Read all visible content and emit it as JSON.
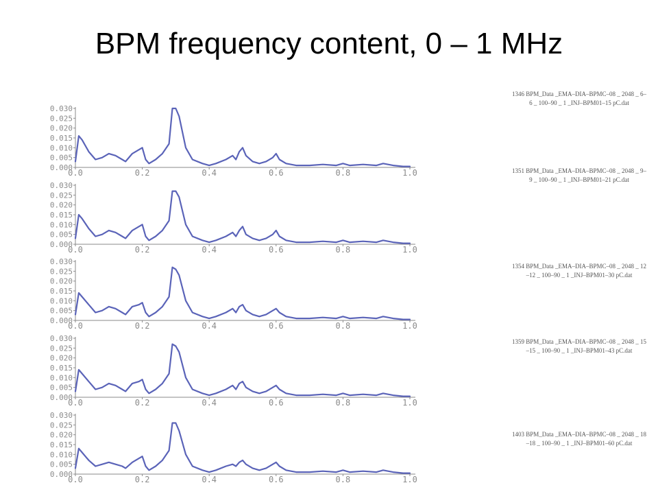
{
  "slide": {
    "title": "BPM frequency content, 0 – 1 MHz"
  },
  "colors": {
    "series": "#5a63b8",
    "axis": "#8a8a8a",
    "caption": "#555555"
  },
  "chart_data": [
    {
      "type": "line",
      "caption": "1346 BPM_Data _EMA–DIA–BPMC–08 _ 2048 _ 6–6 _ 100–90 _ 1 _INJ–BPM01–15 pC.dat",
      "xlim": [
        0,
        1.0
      ],
      "ylim": [
        0,
        0.03
      ],
      "x_ticks": [
        "0.0",
        "0.2",
        "0.4",
        "0.6",
        "0.8",
        "1.0"
      ],
      "y_ticks": [
        "0.000",
        "0.005",
        "0.010",
        "0.015",
        "0.020",
        "0.025",
        "0.030"
      ],
      "x": [
        0.0,
        0.01,
        0.02,
        0.04,
        0.06,
        0.08,
        0.1,
        0.12,
        0.14,
        0.15,
        0.17,
        0.19,
        0.2,
        0.21,
        0.22,
        0.24,
        0.26,
        0.28,
        0.29,
        0.3,
        0.31,
        0.33,
        0.35,
        0.38,
        0.4,
        0.42,
        0.45,
        0.47,
        0.48,
        0.49,
        0.5,
        0.51,
        0.53,
        0.55,
        0.57,
        0.59,
        0.6,
        0.61,
        0.63,
        0.66,
        0.7,
        0.74,
        0.78,
        0.8,
        0.82,
        0.86,
        0.9,
        0.92,
        0.95,
        0.98,
        1.0
      ],
      "values": [
        0.003,
        0.016,
        0.014,
        0.008,
        0.004,
        0.005,
        0.007,
        0.006,
        0.004,
        0.003,
        0.007,
        0.009,
        0.01,
        0.004,
        0.002,
        0.004,
        0.007,
        0.012,
        0.03,
        0.03,
        0.026,
        0.01,
        0.004,
        0.002,
        0.001,
        0.002,
        0.004,
        0.006,
        0.004,
        0.008,
        0.01,
        0.006,
        0.003,
        0.002,
        0.003,
        0.005,
        0.007,
        0.004,
        0.002,
        0.001,
        0.001,
        0.0015,
        0.001,
        0.002,
        0.001,
        0.0015,
        0.001,
        0.002,
        0.001,
        0.0005,
        0.0005
      ]
    },
    {
      "type": "line",
      "caption": "1351 BPM_Data _EMA–DIA–BPMC–08 _ 2048 _ 9–9 _ 100–90 _ 1 _INJ–BPM01–21 pC.dat",
      "xlim": [
        0,
        1.0
      ],
      "ylim": [
        0,
        0.03
      ],
      "x_ticks": [
        "0.0",
        "0.2",
        "0.4",
        "0.6",
        "0.8",
        "1.0"
      ],
      "y_ticks": [
        "0.000",
        "0.005",
        "0.010",
        "0.015",
        "0.020",
        "0.025",
        "0.030"
      ],
      "x": [
        0.0,
        0.01,
        0.02,
        0.04,
        0.06,
        0.08,
        0.1,
        0.12,
        0.14,
        0.15,
        0.17,
        0.19,
        0.2,
        0.21,
        0.22,
        0.24,
        0.26,
        0.28,
        0.29,
        0.3,
        0.31,
        0.33,
        0.35,
        0.38,
        0.4,
        0.42,
        0.45,
        0.47,
        0.48,
        0.49,
        0.5,
        0.51,
        0.53,
        0.55,
        0.57,
        0.59,
        0.6,
        0.61,
        0.63,
        0.66,
        0.7,
        0.74,
        0.78,
        0.8,
        0.82,
        0.86,
        0.9,
        0.92,
        0.95,
        0.98,
        1.0
      ],
      "values": [
        0.003,
        0.015,
        0.013,
        0.008,
        0.004,
        0.005,
        0.007,
        0.006,
        0.004,
        0.003,
        0.007,
        0.009,
        0.01,
        0.004,
        0.002,
        0.004,
        0.007,
        0.012,
        0.027,
        0.027,
        0.024,
        0.01,
        0.004,
        0.002,
        0.001,
        0.002,
        0.004,
        0.006,
        0.004,
        0.007,
        0.009,
        0.005,
        0.003,
        0.002,
        0.003,
        0.005,
        0.007,
        0.004,
        0.002,
        0.001,
        0.001,
        0.0015,
        0.001,
        0.002,
        0.001,
        0.0015,
        0.001,
        0.002,
        0.001,
        0.0005,
        0.0005
      ]
    },
    {
      "type": "line",
      "caption": "1354 BPM_Data _EMA–DIA–BPMC–08 _ 2048 _ 12–12 _ 100–90 _ 1 _INJ–BPM01–30 pC.dat",
      "xlim": [
        0,
        1.0
      ],
      "ylim": [
        0,
        0.03
      ],
      "x_ticks": [
        "0.0",
        "0.2",
        "0.4",
        "0.6",
        "0.8",
        "1.0"
      ],
      "y_ticks": [
        "0.000",
        "0.005",
        "0.010",
        "0.015",
        "0.020",
        "0.025",
        "0.030"
      ],
      "x": [
        0.0,
        0.01,
        0.02,
        0.04,
        0.06,
        0.08,
        0.1,
        0.12,
        0.14,
        0.15,
        0.17,
        0.19,
        0.2,
        0.21,
        0.22,
        0.24,
        0.26,
        0.28,
        0.29,
        0.3,
        0.31,
        0.33,
        0.35,
        0.38,
        0.4,
        0.42,
        0.45,
        0.47,
        0.48,
        0.49,
        0.5,
        0.51,
        0.53,
        0.55,
        0.57,
        0.59,
        0.6,
        0.61,
        0.63,
        0.66,
        0.7,
        0.74,
        0.78,
        0.8,
        0.82,
        0.86,
        0.9,
        0.92,
        0.95,
        0.98,
        1.0
      ],
      "values": [
        0.003,
        0.014,
        0.012,
        0.008,
        0.004,
        0.005,
        0.007,
        0.006,
        0.004,
        0.003,
        0.007,
        0.008,
        0.009,
        0.004,
        0.002,
        0.004,
        0.007,
        0.012,
        0.027,
        0.026,
        0.023,
        0.01,
        0.004,
        0.002,
        0.001,
        0.002,
        0.004,
        0.006,
        0.004,
        0.007,
        0.008,
        0.005,
        0.003,
        0.002,
        0.003,
        0.005,
        0.006,
        0.004,
        0.002,
        0.001,
        0.001,
        0.0015,
        0.001,
        0.002,
        0.001,
        0.0015,
        0.001,
        0.002,
        0.001,
        0.0005,
        0.0005
      ]
    },
    {
      "type": "line",
      "caption": "1359 BPM_Data _EMA–DIA–BPMC–08 _ 2048 _ 15–15 _ 100–90 _ 1 _INJ–BPM01–43 pC.dat",
      "xlim": [
        0,
        1.0
      ],
      "ylim": [
        0,
        0.03
      ],
      "x_ticks": [
        "0.0",
        "0.2",
        "0.4",
        "0.6",
        "0.8",
        "1.0"
      ],
      "y_ticks": [
        "0.000",
        "0.005",
        "0.010",
        "0.015",
        "0.020",
        "0.025",
        "0.030"
      ],
      "x": [
        0.0,
        0.01,
        0.02,
        0.04,
        0.06,
        0.08,
        0.1,
        0.12,
        0.14,
        0.15,
        0.17,
        0.19,
        0.2,
        0.21,
        0.22,
        0.24,
        0.26,
        0.28,
        0.29,
        0.3,
        0.31,
        0.33,
        0.35,
        0.38,
        0.4,
        0.42,
        0.45,
        0.47,
        0.48,
        0.49,
        0.5,
        0.51,
        0.53,
        0.55,
        0.57,
        0.59,
        0.6,
        0.61,
        0.63,
        0.66,
        0.7,
        0.74,
        0.78,
        0.8,
        0.82,
        0.86,
        0.9,
        0.92,
        0.95,
        0.98,
        1.0
      ],
      "values": [
        0.003,
        0.014,
        0.012,
        0.008,
        0.004,
        0.005,
        0.007,
        0.006,
        0.004,
        0.003,
        0.007,
        0.008,
        0.009,
        0.004,
        0.002,
        0.004,
        0.007,
        0.012,
        0.027,
        0.026,
        0.023,
        0.01,
        0.004,
        0.002,
        0.001,
        0.002,
        0.004,
        0.006,
        0.004,
        0.007,
        0.008,
        0.005,
        0.003,
        0.002,
        0.003,
        0.005,
        0.006,
        0.004,
        0.002,
        0.001,
        0.001,
        0.0015,
        0.001,
        0.002,
        0.001,
        0.0015,
        0.001,
        0.002,
        0.001,
        0.0005,
        0.0005
      ]
    },
    {
      "type": "line",
      "caption": "1403 BPM_Data _EMA–DIA–BPMC–08 _ 2048 _ 18–18 _ 100–90 _ 1 _INJ–BPM01–60 pC.dat",
      "xlim": [
        0,
        1.0
      ],
      "ylim": [
        0,
        0.03
      ],
      "x_ticks": [
        "0.0",
        "0.2",
        "0.4",
        "0.6",
        "0.8",
        "1.0"
      ],
      "y_ticks": [
        "0.000",
        "0.005",
        "0.010",
        "0.015",
        "0.020",
        "0.025",
        "0.030"
      ],
      "x": [
        0.0,
        0.01,
        0.02,
        0.04,
        0.06,
        0.08,
        0.1,
        0.12,
        0.14,
        0.15,
        0.17,
        0.19,
        0.2,
        0.21,
        0.22,
        0.24,
        0.26,
        0.28,
        0.29,
        0.3,
        0.31,
        0.33,
        0.35,
        0.38,
        0.4,
        0.42,
        0.45,
        0.47,
        0.48,
        0.49,
        0.5,
        0.51,
        0.53,
        0.55,
        0.57,
        0.59,
        0.6,
        0.61,
        0.63,
        0.66,
        0.7,
        0.74,
        0.78,
        0.8,
        0.82,
        0.86,
        0.9,
        0.92,
        0.95,
        0.98,
        1.0
      ],
      "values": [
        0.003,
        0.013,
        0.011,
        0.007,
        0.004,
        0.005,
        0.006,
        0.005,
        0.004,
        0.003,
        0.006,
        0.008,
        0.009,
        0.004,
        0.002,
        0.004,
        0.007,
        0.012,
        0.026,
        0.026,
        0.022,
        0.01,
        0.004,
        0.002,
        0.001,
        0.002,
        0.004,
        0.005,
        0.004,
        0.006,
        0.007,
        0.005,
        0.003,
        0.002,
        0.003,
        0.005,
        0.006,
        0.004,
        0.002,
        0.001,
        0.001,
        0.0015,
        0.001,
        0.002,
        0.001,
        0.0015,
        0.001,
        0.002,
        0.001,
        0.0005,
        0.0005
      ]
    }
  ]
}
